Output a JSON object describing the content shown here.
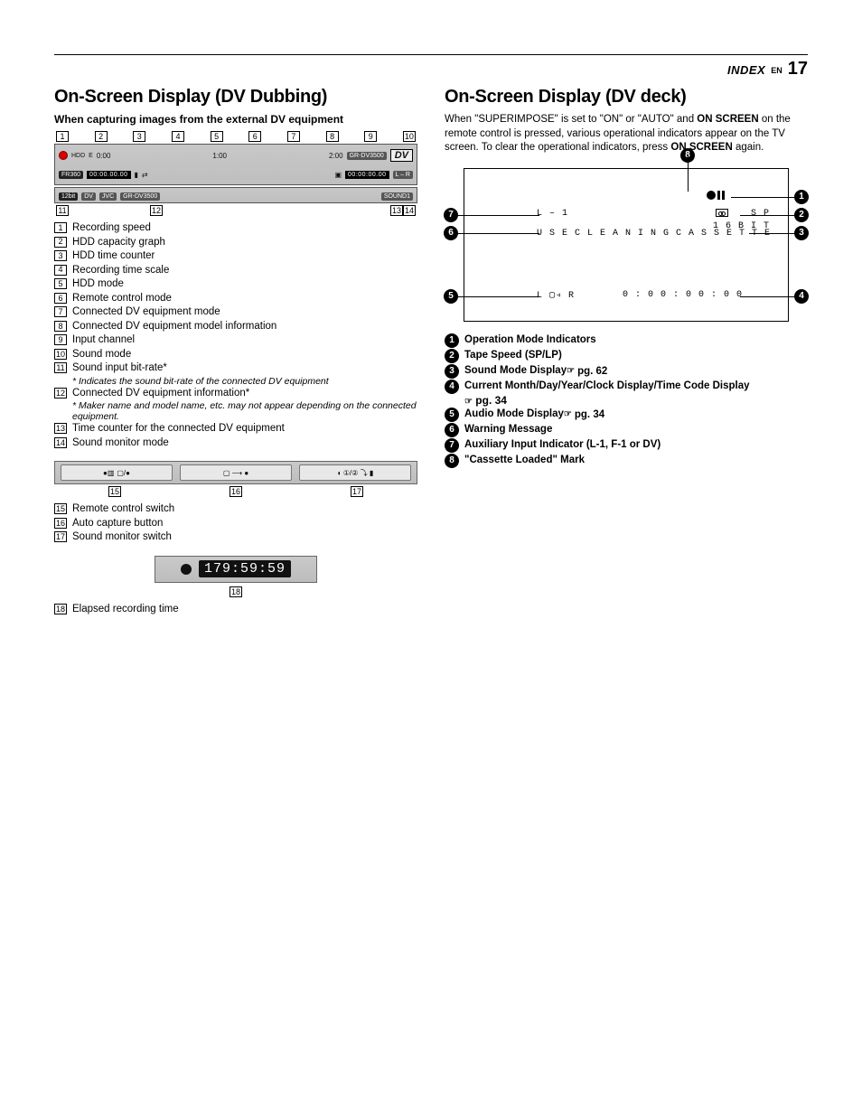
{
  "header": {
    "index": "INDEX",
    "en": "EN",
    "page": "17"
  },
  "left": {
    "title": "On-Screen Display (DV Dubbing)",
    "subtitle": "When capturing images from the external DV equipment",
    "bar": {
      "rec_speed": "FR360",
      "hdd_label": "HDD",
      "hdd_letter": "E",
      "scale_0": "0:00",
      "scale_1": "1:00",
      "scale_2": "2:00",
      "model": "GR-DV3500",
      "dv_logo": "DV",
      "tc1": "00:00.00.00",
      "tc2": "00:00:00.00",
      "bit": "12bit",
      "dv_chip": "DV",
      "jvc": "JVC",
      "model2": "GR-DV3500",
      "lr": "L – R",
      "sound": "SOUND1"
    },
    "top_nums": [
      "1",
      "2",
      "3",
      "4",
      "5",
      "6",
      "7",
      "8",
      "9",
      "10"
    ],
    "bot_nums": [
      "11",
      "12",
      "13",
      "14"
    ],
    "legend": [
      {
        "n": "1",
        "t": "Recording speed"
      },
      {
        "n": "2",
        "t": "HDD capacity graph"
      },
      {
        "n": "3",
        "t": "HDD time counter"
      },
      {
        "n": "4",
        "t": "Recording time scale"
      },
      {
        "n": "5",
        "t": "HDD mode"
      },
      {
        "n": "6",
        "t": "Remote control mode"
      },
      {
        "n": "7",
        "t": "Connected DV equipment mode"
      },
      {
        "n": "8",
        "t": "Connected DV equipment model information"
      },
      {
        "n": "9",
        "t": "Input channel"
      },
      {
        "n": "10",
        "t": "Sound mode"
      },
      {
        "n": "11",
        "t": "Sound input bit-rate*",
        "note": "* Indicates the sound bit-rate of the connected DV equipment"
      },
      {
        "n": "12",
        "t": "Connected DV equipment information*",
        "note": "* Maker name and model name, etc. may not appear depending on the connected equipment."
      },
      {
        "n": "13",
        "t": "Time counter for the connected DV equipment"
      },
      {
        "n": "14",
        "t": "Sound monitor mode"
      }
    ],
    "btnbar_nums": [
      "15",
      "16",
      "17"
    ],
    "legend2": [
      {
        "n": "15",
        "t": "Remote control switch"
      },
      {
        "n": "16",
        "t": "Auto capture button"
      },
      {
        "n": "17",
        "t": "Sound monitor switch"
      }
    ],
    "timer": "179:59:59",
    "timer_num": "18",
    "timer_legend": "Elapsed recording time"
  },
  "right": {
    "title": "On-Screen Display (DV deck)",
    "intro": {
      "pre": "When \"SUPERIMPOSE\" is set to \"ON\" or \"AUTO\" and ",
      "b1": "ON SCREEN",
      "mid": " on the remote control is pressed, various operational indicators appear on the TV screen. To clear the operational indicators, press ",
      "b2": "ON SCREEN",
      "post": " again."
    },
    "tv": {
      "l1_label": "L – 1",
      "sp": "S P",
      "bit": "1 6 B I T",
      "warn": "U S E   C L E A N I N G   C A S S E T T E",
      "audio": "L ▢◃ R",
      "tc": "0 : 0 0 : 0 0 : 0 0"
    },
    "circ_nums": [
      "1",
      "2",
      "3",
      "4",
      "5",
      "6",
      "7",
      "8"
    ],
    "circ_list": [
      {
        "n": "1",
        "t": "Operation Mode Indicators"
      },
      {
        "n": "2",
        "t": "Tape Speed (SP/LP)"
      },
      {
        "n": "3",
        "t": "Sound Mode Display",
        "pg": "pg. 62"
      },
      {
        "n": "4",
        "t": "Current Month/Day/Year/Clock Display/Time Code Display",
        "pg": "pg. 34",
        "pg_newline": true
      },
      {
        "n": "5",
        "t": "Audio Mode Display",
        "pg": "pg. 34"
      },
      {
        "n": "6",
        "t": "Warning Message"
      },
      {
        "n": "7",
        "t": "Auxiliary Input Indicator (L-1, F-1 or DV)"
      },
      {
        "n": "8",
        "t": "\"Cassette Loaded\" Mark"
      }
    ]
  },
  "colors": {
    "bar_bg": "#c3c3c3",
    "chip_bg": "#222222",
    "text": "#000000"
  }
}
